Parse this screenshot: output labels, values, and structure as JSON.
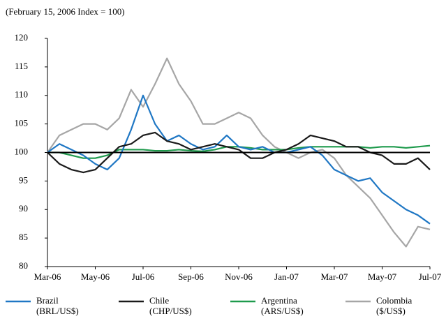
{
  "chart_data": {
    "type": "line",
    "subtitle": "(February 15, 2006 Index = 100)",
    "x": [
      0,
      0.5,
      1,
      1.5,
      2,
      2.5,
      3,
      3.5,
      4,
      4.5,
      5,
      5.5,
      6,
      6.5,
      7,
      7.5,
      8,
      8.5,
      9,
      9.5,
      10,
      10.5,
      11,
      11.5,
      12,
      12.5,
      13,
      13.5,
      14,
      14.5,
      15,
      15.5,
      16
    ],
    "xlim": [
      0,
      16
    ],
    "xticks": [
      {
        "value": 0,
        "label": "Mar-06"
      },
      {
        "value": 2,
        "label": "May-06"
      },
      {
        "value": 4,
        "label": "Jul-06"
      },
      {
        "value": 6,
        "label": "Sep-06"
      },
      {
        "value": 8,
        "label": "Nov-06"
      },
      {
        "value": 10,
        "label": "Jan-07"
      },
      {
        "value": 12,
        "label": "Mar-07"
      },
      {
        "value": 14,
        "label": "May-07"
      },
      {
        "value": 16,
        "label": "Jul-07"
      }
    ],
    "ylim": [
      80,
      120
    ],
    "yticks": [
      80,
      85,
      90,
      95,
      100,
      105,
      110,
      115,
      120
    ],
    "reference_line": 100,
    "series": [
      {
        "name": "Brazil",
        "unit": "(BRL/US$)",
        "color": "#1f77c4",
        "values": [
          100,
          101.5,
          100.5,
          99.5,
          98,
          97,
          99,
          104,
          110,
          105,
          102,
          103,
          101.5,
          100.5,
          101,
          103,
          101,
          100.5,
          101,
          100,
          100,
          100.5,
          101,
          99.5,
          97,
          96,
          95,
          95.5,
          93,
          91.5,
          90,
          89,
          87.5
        ]
      },
      {
        "name": "Chile",
        "unit": "(CHP/US$)",
        "color": "#1a1a1a",
        "values": [
          100,
          98,
          97,
          96.5,
          97,
          99,
          101,
          101.5,
          103,
          103.5,
          102,
          101.5,
          100.5,
          101,
          101.5,
          101,
          100.5,
          99,
          99,
          100,
          100.5,
          101.5,
          103,
          102.5,
          102,
          101,
          101,
          100,
          99.5,
          98,
          98,
          99,
          97
        ]
      },
      {
        "name": "Argentina",
        "unit": "(ARS/US$)",
        "color": "#1e9a4c",
        "values": [
          100,
          100,
          99.5,
          99,
          99,
          99.5,
          100.5,
          100.5,
          100.5,
          100.3,
          100.3,
          100.5,
          100.3,
          100.2,
          100.5,
          101,
          101,
          100.8,
          100.5,
          100.5,
          100.5,
          100.8,
          101,
          101,
          101,
          101,
          101,
          100.8,
          101,
          101,
          100.8,
          101,
          101.2
        ]
      },
      {
        "name": "Colombia",
        "unit": "($/US$)",
        "color": "#a6a6a6",
        "values": [
          100,
          103,
          104,
          105,
          105,
          104,
          106,
          111,
          108,
          112,
          116.5,
          112,
          109,
          105,
          105,
          106,
          107,
          106,
          103,
          101,
          100,
          99,
          100,
          100.5,
          99,
          96,
          94,
          92,
          89,
          86,
          83.5,
          87,
          86.5
        ]
      }
    ]
  }
}
